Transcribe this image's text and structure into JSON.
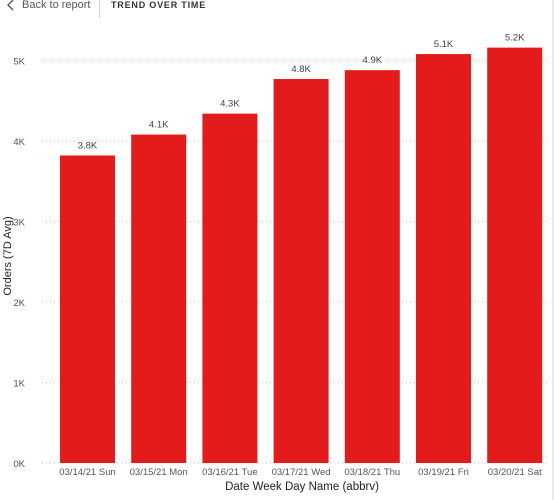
{
  "header": {
    "back_label": "Back to report",
    "title": "TREND OVER TIME"
  },
  "chart_data": {
    "type": "bar",
    "categories": [
      "03/14/21 Sun",
      "03/15/21 Mon",
      "03/16/21 Tue",
      "03/17/21 Wed",
      "03/18/21 Thu",
      "03/19/21 Fri",
      "03/20/21 Sat"
    ],
    "values": [
      3820,
      4080,
      4340,
      4770,
      4880,
      5080,
      5160
    ],
    "data_labels": [
      "3.8K",
      "4.1K",
      "4.3K",
      "4.8K",
      "4.9K",
      "5.1K",
      "5.2K"
    ],
    "y_ticks": [
      0,
      1000,
      2000,
      3000,
      4000,
      5000
    ],
    "y_tick_labels": [
      "0K",
      "1K",
      "2K",
      "3K",
      "4K",
      "5K"
    ],
    "ylim": [
      0,
      5500
    ],
    "xlabel": "Date Week Day Name (abbrv)",
    "ylabel": "Orders (7D Avg)",
    "bar_color": "#e41b1b",
    "grid": true,
    "legend": "none"
  }
}
